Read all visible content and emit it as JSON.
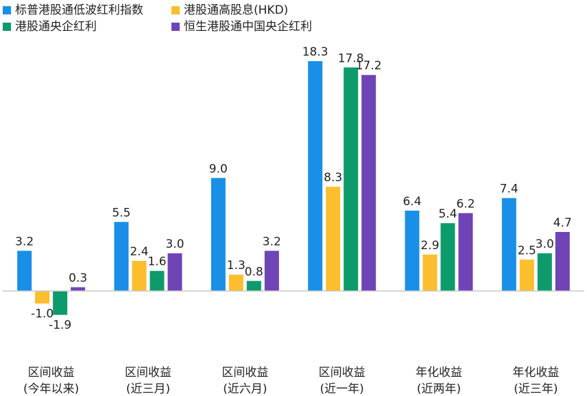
{
  "chart_data": {
    "type": "bar",
    "categories": [
      [
        "区间收益",
        "(今年以来)"
      ],
      [
        "区间收益",
        "(近三月)"
      ],
      [
        "区间收益",
        "(近六月)"
      ],
      [
        "区间收益",
        "(近一年)"
      ],
      [
        "年化收益",
        "(近两年)"
      ],
      [
        "年化收益",
        "(近三年)"
      ]
    ],
    "series": [
      {
        "name": "标普港股通低波红利指数",
        "color": "#1a8fe8",
        "values": [
          3.2,
          5.5,
          9.0,
          18.3,
          6.4,
          7.4
        ]
      },
      {
        "name": "港股通高股息(HKD)",
        "color": "#fbbe2e",
        "values": [
          -1.0,
          2.4,
          1.3,
          8.3,
          2.9,
          2.5
        ]
      },
      {
        "name": "港股通央企红利",
        "color": "#0d9b6b",
        "values": [
          -1.9,
          1.6,
          0.8,
          17.8,
          5.4,
          3.0
        ]
      },
      {
        "name": "恒生港股通中国央企红利",
        "color": "#6f45b5",
        "values": [
          0.3,
          3.0,
          3.2,
          17.2,
          6.2,
          4.7
        ]
      }
    ],
    "value_labels": [
      [
        "3.2",
        "-1.0",
        "-1.9",
        "0.3"
      ],
      [
        "5.5",
        "2.4",
        "1.6",
        "3.0"
      ],
      [
        "9.0",
        "1.3",
        "0.8",
        "3.2"
      ],
      [
        "18.3",
        "8.3",
        "17.8",
        "17.2"
      ],
      [
        "6.4",
        "2.9",
        "5.4",
        "6.2"
      ],
      [
        "7.4",
        "2.5",
        "3.0",
        "4.7"
      ]
    ],
    "ylim": [
      -3.0,
      20.0
    ],
    "grid": false,
    "legend_position": "top-left"
  }
}
